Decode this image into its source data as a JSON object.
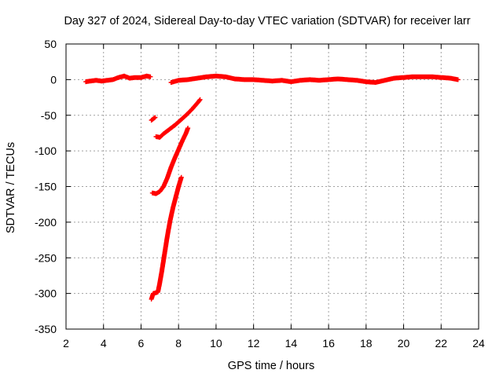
{
  "chart_data": {
    "type": "scatter",
    "title": "Day 327 of 2024, Sidereal Day-to-day VTEC variation (SDTVAR) for receiver larr",
    "xlabel": "GPS time / hours",
    "ylabel": "SDTVAR / TECUs",
    "xlim": [
      2,
      24
    ],
    "ylim": [
      -350,
      50
    ],
    "xticks": [
      2,
      4,
      6,
      8,
      10,
      12,
      14,
      16,
      18,
      20,
      22,
      24
    ],
    "yticks": [
      -350,
      -300,
      -250,
      -200,
      -150,
      -100,
      -50,
      0,
      50
    ],
    "grid": true,
    "legend": "none",
    "marker": "plus",
    "series": [
      {
        "color": "#ff0000",
        "segments": [
          [
            [
              3.05,
              -3
            ],
            [
              3.3,
              -2
            ],
            [
              3.6,
              -1
            ],
            [
              3.9,
              -2
            ],
            [
              4.2,
              -1
            ],
            [
              4.5,
              0
            ],
            [
              4.8,
              3
            ],
            [
              5.1,
              5
            ],
            [
              5.4,
              2
            ],
            [
              5.7,
              3
            ],
            [
              6.0,
              3
            ],
            [
              6.3,
              5
            ],
            [
              6.5,
              4
            ]
          ],
          [
            [
              6.55,
              -57
            ],
            [
              6.75,
              -53
            ]
          ],
          [
            [
              6.8,
              -80
            ],
            [
              7.0,
              -81
            ],
            [
              7.2,
              -76
            ],
            [
              7.5,
              -70
            ],
            [
              7.8,
              -64
            ],
            [
              8.1,
              -57
            ],
            [
              8.4,
              -50
            ],
            [
              8.7,
              -42
            ],
            [
              9.0,
              -33
            ],
            [
              9.15,
              -28
            ]
          ],
          [
            [
              6.6,
              -159
            ],
            [
              6.8,
              -160
            ],
            [
              7.0,
              -157
            ],
            [
              7.2,
              -150
            ],
            [
              7.4,
              -138
            ],
            [
              7.6,
              -123
            ],
            [
              7.8,
              -110
            ],
            [
              8.0,
              -98
            ],
            [
              8.2,
              -86
            ],
            [
              8.4,
              -75
            ],
            [
              8.5,
              -68
            ]
          ],
          [
            [
              6.55,
              -308
            ],
            [
              6.65,
              -300
            ],
            [
              6.8,
              -299
            ],
            [
              6.9,
              -298
            ],
            [
              7.0,
              -285
            ],
            [
              7.1,
              -270
            ],
            [
              7.25,
              -245
            ],
            [
              7.4,
              -220
            ],
            [
              7.55,
              -198
            ],
            [
              7.7,
              -180
            ],
            [
              7.85,
              -165
            ],
            [
              8.0,
              -150
            ],
            [
              8.15,
              -137
            ]
          ],
          [
            [
              7.6,
              -4
            ],
            [
              8.0,
              -1
            ],
            [
              8.5,
              0
            ],
            [
              9.0,
              2
            ],
            [
              9.5,
              4
            ],
            [
              10.0,
              5
            ],
            [
              10.5,
              4
            ],
            [
              11.0,
              1
            ],
            [
              11.5,
              0
            ],
            [
              12.0,
              0
            ],
            [
              12.5,
              -1
            ],
            [
              13.0,
              -2
            ],
            [
              13.5,
              -1
            ],
            [
              14.0,
              -3
            ],
            [
              14.5,
              -1
            ],
            [
              15.0,
              0
            ],
            [
              15.5,
              -1
            ],
            [
              16.0,
              0
            ],
            [
              16.5,
              1
            ],
            [
              17.0,
              0
            ],
            [
              17.5,
              -1
            ],
            [
              18.0,
              -3
            ],
            [
              18.5,
              -4
            ],
            [
              19.0,
              -1
            ],
            [
              19.5,
              2
            ],
            [
              20.0,
              3
            ],
            [
              20.5,
              4
            ],
            [
              21.0,
              4
            ],
            [
              21.5,
              4
            ],
            [
              22.0,
              3
            ],
            [
              22.5,
              2
            ],
            [
              22.9,
              0
            ]
          ]
        ]
      }
    ]
  }
}
